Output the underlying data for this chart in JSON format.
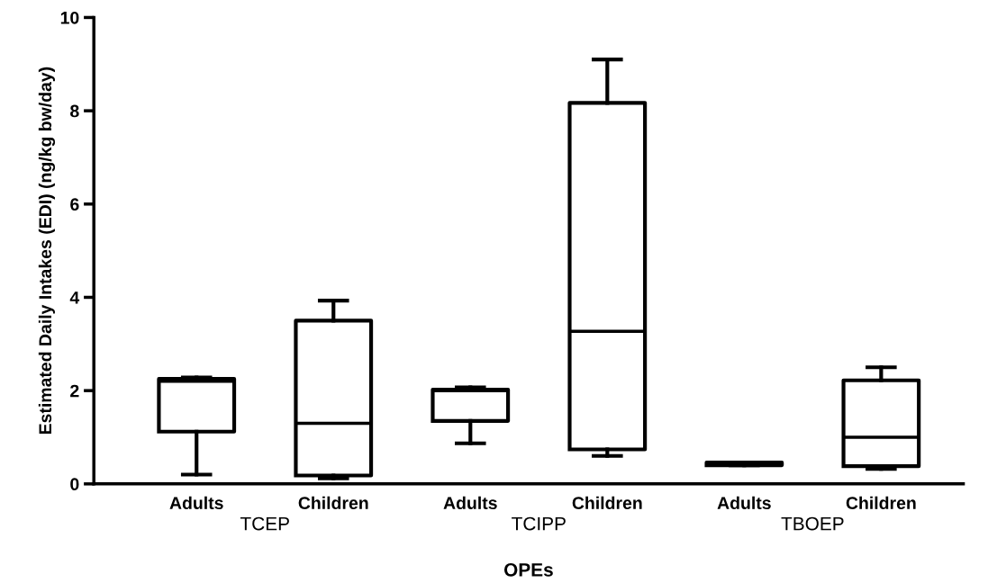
{
  "chart_data": {
    "type": "box",
    "xlabel": "OPEs",
    "ylabel": "Estimated Daily Intakes (EDI) (ng/kg bw/day)",
    "categories": [
      "Adults",
      "Children",
      "Adults",
      "Children",
      "Adults",
      "Children"
    ],
    "annotations": [
      "TCEP",
      "TCIPP",
      "TBOEP"
    ],
    "boxes": [
      {
        "low": 0.2,
        "q1": 1.12,
        "median": 2.2,
        "q3": 2.25,
        "high": 2.28
      },
      {
        "low": 0.12,
        "q1": 0.18,
        "median": 1.3,
        "q3": 3.5,
        "high": 3.93
      },
      {
        "low": 0.87,
        "q1": 1.35,
        "median": 2.0,
        "q3": 2.02,
        "high": 2.07
      },
      {
        "low": 0.6,
        "q1": 0.74,
        "median": 3.27,
        "q3": 8.17,
        "high": 9.1
      },
      {
        "low": 0.4,
        "q1": 0.4,
        "median": 0.43,
        "q3": 0.46,
        "high": 0.46
      },
      {
        "low": 0.32,
        "q1": 0.38,
        "median": 1.0,
        "q3": 2.22,
        "high": 2.5
      }
    ],
    "color": "#000000",
    "ylim": [
      0,
      10
    ],
    "yticks": [
      0,
      2,
      4,
      6,
      8,
      10
    ],
    "grid": false
  }
}
